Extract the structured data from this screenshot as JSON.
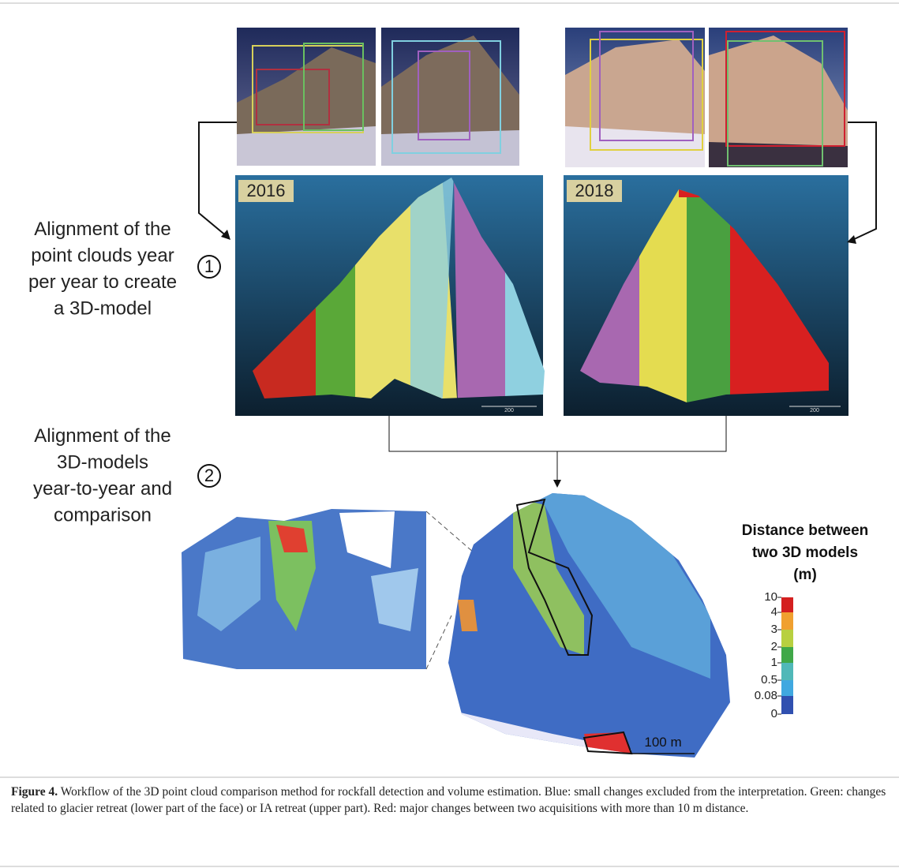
{
  "figure": {
    "panels": [
      {
        "year": "2016",
        "scale_label": "200"
      },
      {
        "year": "2018",
        "scale_label": "200"
      }
    ],
    "steps": [
      {
        "number": "1",
        "lines": [
          "Alignment of the",
          "point clouds year",
          "per year to create",
          "a 3D-model"
        ]
      },
      {
        "number": "2",
        "lines": [
          "Alignment of the",
          "3D-models",
          "year-to-year and",
          "comparison"
        ]
      }
    ],
    "legend": {
      "title": [
        "Distance between",
        "two 3D models",
        "(m)"
      ],
      "ticks": [
        "10",
        "4",
        "3",
        "2",
        "1",
        "0.5",
        "0.08",
        "0"
      ]
    },
    "scale_bar": "100 m",
    "caption": {
      "label": "Figure 4.",
      "text": "Workflow of the 3D point cloud comparison method for rockfall detection and volume estimation. Blue: small changes excluded from the interpretation. Green: changes related to glacier retreat (lower part of the face) or IA retreat (upper part). Red: major changes between two acquisitions with more than 10 m distance."
    }
  }
}
